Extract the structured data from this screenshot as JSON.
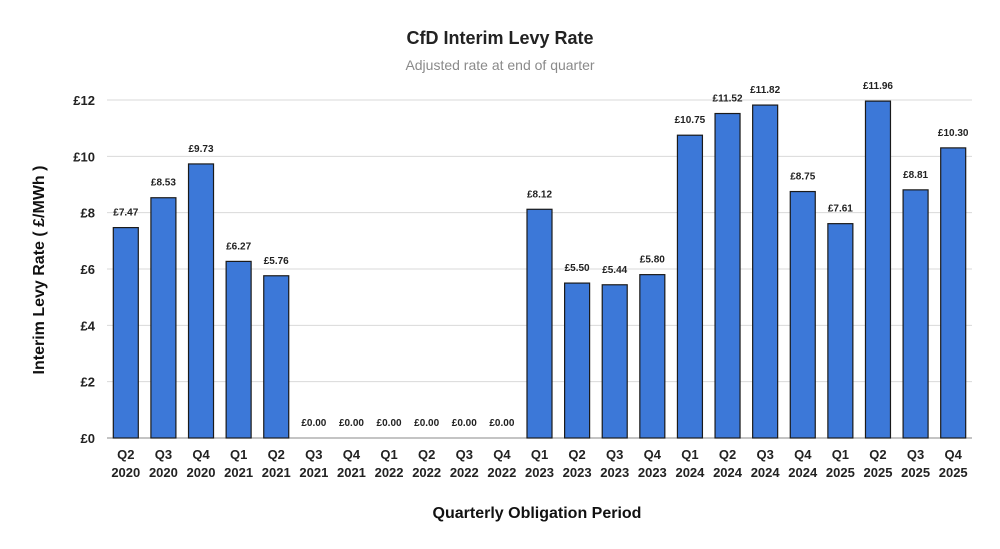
{
  "chart_data": {
    "type": "bar",
    "title": "CfD Interim Levy Rate",
    "subtitle": "Adjusted rate at end of quarter",
    "xlabel": "Quarterly Obligation Period",
    "ylabel": "Interim Levy Rate  ( £/MWh )",
    "ylim": [
      0,
      12
    ],
    "yticks": [
      0,
      2,
      4,
      6,
      8,
      10,
      12
    ],
    "ytick_labels": [
      "£0",
      "£2",
      "£4",
      "£6",
      "£8",
      "£10",
      "£12"
    ],
    "grid": true,
    "bar_color": "#3c78d8",
    "categories": [
      [
        "Q2",
        "2020"
      ],
      [
        "Q3",
        "2020"
      ],
      [
        "Q4",
        "2020"
      ],
      [
        "Q1",
        "2021"
      ],
      [
        "Q2",
        "2021"
      ],
      [
        "Q3",
        "2021"
      ],
      [
        "Q4",
        "2021"
      ],
      [
        "Q1",
        "2022"
      ],
      [
        "Q2",
        "2022"
      ],
      [
        "Q3",
        "2022"
      ],
      [
        "Q4",
        "2022"
      ],
      [
        "Q1",
        "2023"
      ],
      [
        "Q2",
        "2023"
      ],
      [
        "Q3",
        "2023"
      ],
      [
        "Q4",
        "2023"
      ],
      [
        "Q1",
        "2024"
      ],
      [
        "Q2",
        "2024"
      ],
      [
        "Q3",
        "2024"
      ],
      [
        "Q4",
        "2024"
      ],
      [
        "Q1",
        "2025"
      ],
      [
        "Q2",
        "2025"
      ],
      [
        "Q3",
        "2025"
      ],
      [
        "Q4",
        "2025"
      ]
    ],
    "values": [
      7.47,
      8.53,
      9.73,
      6.27,
      5.76,
      0,
      0,
      0,
      0,
      0,
      0,
      8.12,
      5.5,
      5.44,
      5.8,
      10.75,
      11.52,
      11.82,
      8.75,
      7.61,
      11.96,
      8.81,
      10.3
    ],
    "data_labels": [
      "£7.47",
      "£8.53",
      "£9.73",
      "£6.27",
      "£5.76",
      "£0.00",
      "£0.00",
      "£0.00",
      "£0.00",
      "£0.00",
      "£0.00",
      "£8.12",
      "£5.50",
      "£5.44",
      "£5.80",
      "£10.75",
      "£11.52",
      "£11.82",
      "£8.75",
      "£7.61",
      "£11.96",
      "£8.81",
      "£10.30"
    ]
  }
}
